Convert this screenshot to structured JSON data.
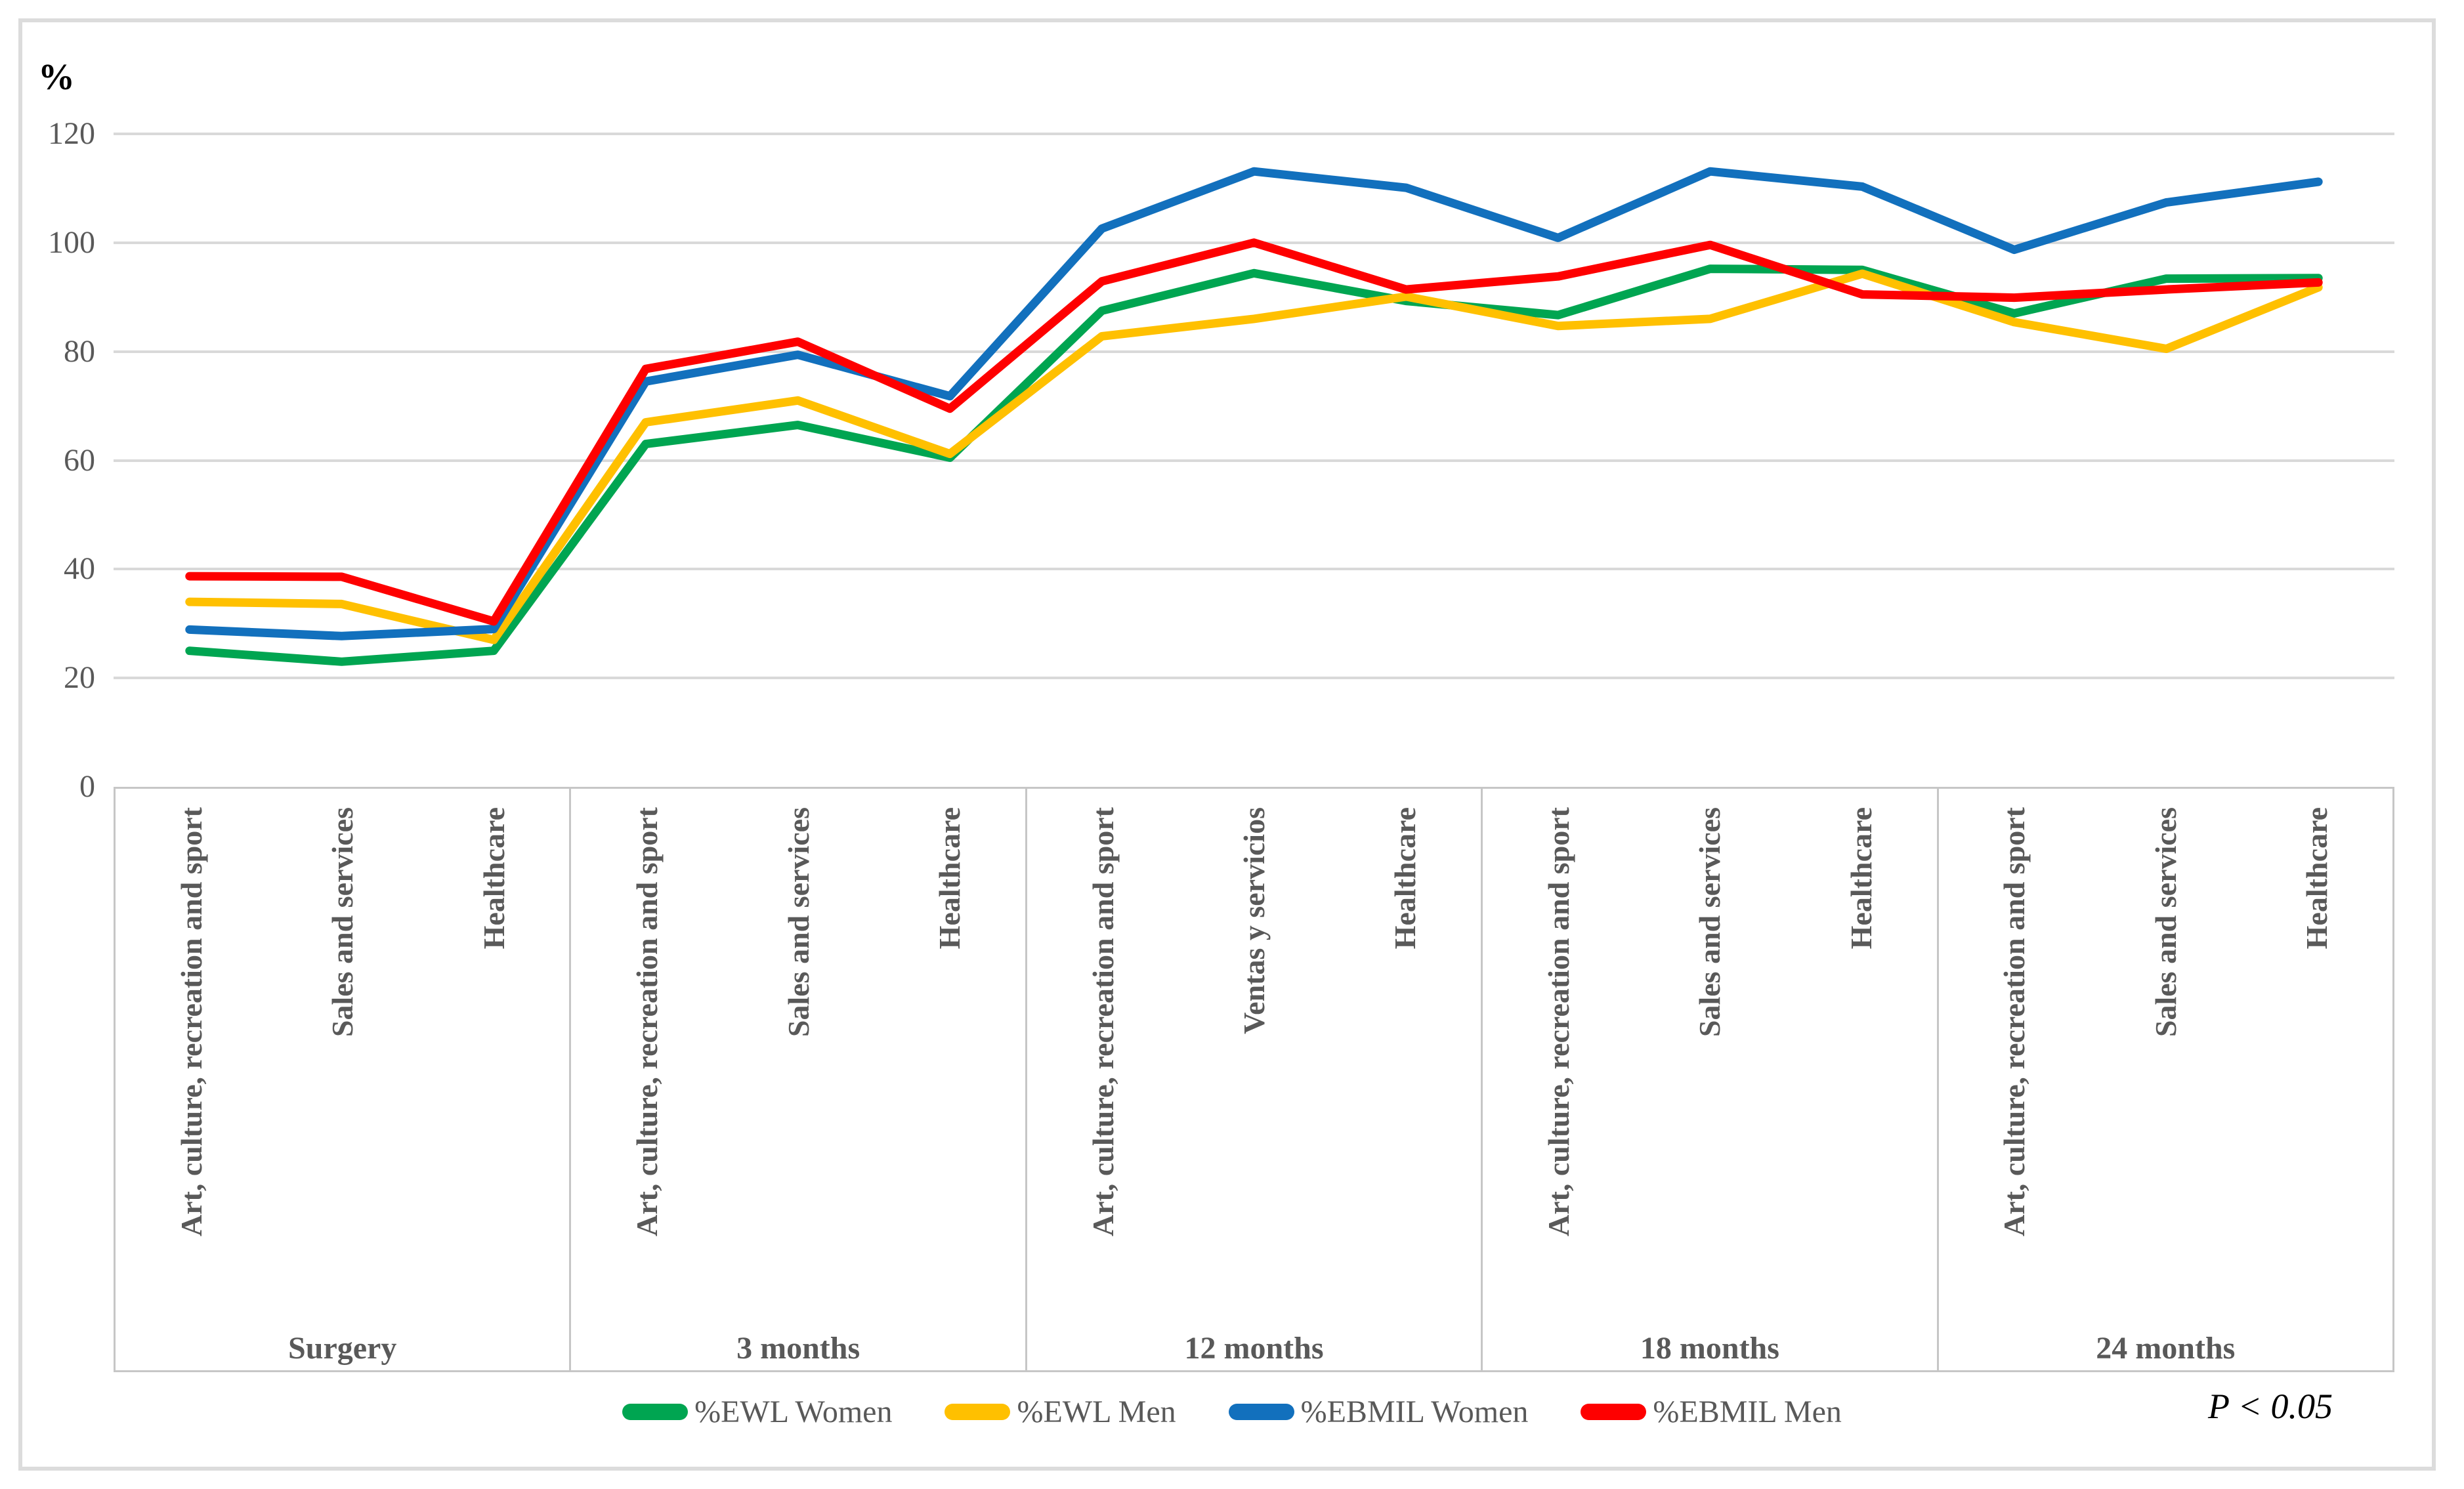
{
  "chart_data": {
    "type": "line",
    "title": "",
    "ylabel": "%",
    "ylim": [
      0,
      120
    ],
    "yticks": [
      "120",
      "100",
      "80",
      "60",
      "40",
      "20",
      "0"
    ],
    "grid": "horizontal",
    "legend_position": "bottom",
    "annotation": "P < 0.05",
    "groups": [
      {
        "label": "Surgery",
        "categories": [
          "Art, culture, recreation and sport",
          "Sales and services",
          "Healthcare"
        ]
      },
      {
        "label": "3 months",
        "categories": [
          "Art, culture, recreation and sport",
          "Sales and services",
          "Healthcare"
        ]
      },
      {
        "label": "12 months",
        "categories": [
          "Art, culture, recreation and sport",
          "Ventas y servicios",
          "Healthcare"
        ]
      },
      {
        "label": "18 months",
        "categories": [
          "Art, culture, recreation and sport",
          "Sales and services",
          "Healthcare"
        ]
      },
      {
        "label": "24 months",
        "categories": [
          "Art, culture, recreation and sport",
          "Sales and services",
          "Healthcare"
        ]
      }
    ],
    "series": [
      {
        "name": "%EWL Women",
        "color": "#00A551",
        "values": [
          25,
          23,
          25,
          63,
          66.5,
          60.5,
          87.5,
          94.4,
          89.3,
          86.7,
          95.2,
          95,
          87,
          93.4,
          93.5
        ]
      },
      {
        "name": "%EWL Men",
        "color": "#FFC000",
        "values": [
          34,
          33.6,
          27,
          67,
          71,
          61.2,
          82.8,
          86,
          90.1,
          84.7,
          86,
          94.3,
          85.4,
          80.5,
          91.8
        ]
      },
      {
        "name": "%EBMIL Women",
        "color": "#1270BD",
        "values": [
          28.9,
          27.7,
          29,
          74.5,
          79.4,
          71.8,
          102.6,
          113.1,
          110.1,
          100.9,
          113.1,
          110.3,
          98.7,
          107.4,
          111.2
        ]
      },
      {
        "name": "%EBMIL Men",
        "color": "#FE0000",
        "values": [
          38.7,
          38.6,
          30.4,
          76.8,
          81.8,
          69.5,
          92.9,
          100,
          91.4,
          93.8,
          99.6,
          90.5,
          89.9,
          91.4,
          92.7
        ]
      }
    ]
  }
}
